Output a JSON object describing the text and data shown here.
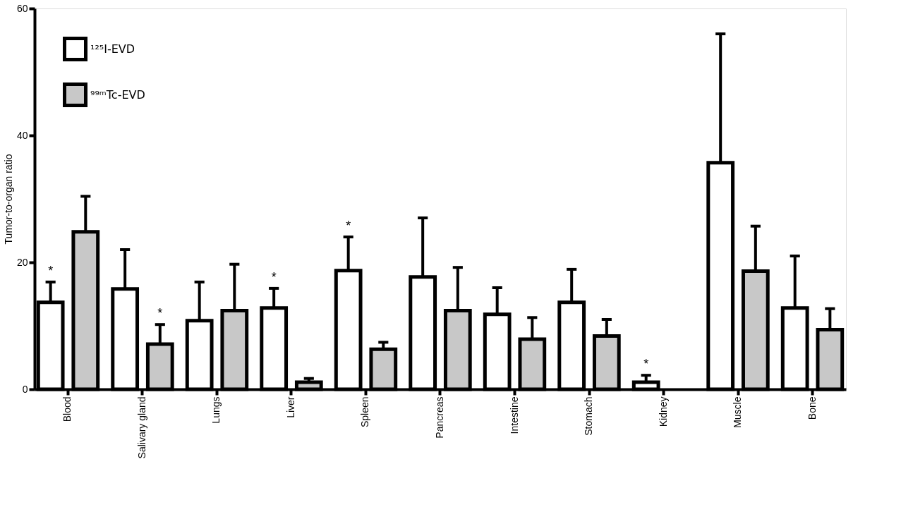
{
  "chart_data": {
    "type": "bar",
    "ylabel": "Tumor-to-organ ratio",
    "categories": [
      "Blood",
      "Salivary gland",
      "Lungs",
      "Liver",
      "Spleen",
      "Pancreas",
      "Intestine",
      "Stomach",
      "Kidney",
      "Muscle",
      "Bone"
    ],
    "series": [
      {
        "name": "¹²⁵I-EVD",
        "color": "#ffffff",
        "values": [
          13.7,
          15.8,
          10.8,
          12.8,
          18.7,
          17.7,
          11.8,
          13.7,
          1.1,
          35.7,
          12.8
        ],
        "errors": [
          [
            13.7,
            16.9
          ],
          [
            15.8,
            22
          ],
          [
            10.8,
            16.9
          ],
          [
            12.8,
            15.9
          ],
          [
            18.7,
            24
          ],
          [
            17.7,
            27
          ],
          [
            11.8,
            16
          ],
          [
            13.7,
            18.9
          ],
          [
            1.1,
            2.2
          ],
          [
            35.7,
            56
          ],
          [
            12.8,
            21
          ]
        ],
        "value_labels": [
          "*",
          null,
          null,
          "*",
          "*",
          null,
          null,
          null,
          "*",
          null,
          null
        ]
      },
      {
        "name": "⁹⁹ᵐTc-EVD",
        "color": "#c8c8c8",
        "values": [
          24.8,
          7.1,
          12.4,
          1.1,
          6.3,
          12.4,
          7.9,
          8.4,
          null,
          18.6,
          9.4
        ],
        "errors": [
          [
            24.8,
            30.4
          ],
          [
            7.1,
            10.2
          ],
          [
            12.4,
            19.7
          ],
          [
            1.1,
            1.7
          ],
          [
            6.3,
            7.4
          ],
          [
            12.4,
            19.2
          ],
          [
            7.9,
            11.3
          ],
          [
            8.4,
            11
          ],
          null,
          [
            18.6,
            25.7
          ],
          [
            9.4,
            12.7
          ]
        ],
        "value_labels": [
          null,
          "*",
          null,
          null,
          null,
          null,
          null,
          null,
          null,
          null,
          null
        ]
      }
    ],
    "ylim": [
      0,
      60
    ],
    "yticks": [
      0,
      20,
      40,
      60
    ],
    "grid": false,
    "legend": "top left"
  }
}
